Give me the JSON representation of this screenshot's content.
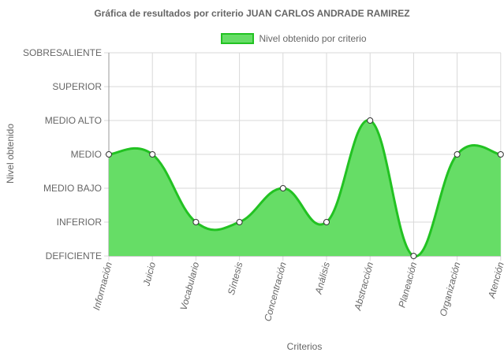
{
  "chart_data": {
    "type": "area",
    "title": "Gráfica de resultados por criterio JUAN CARLOS ANDRADE RAMIREZ",
    "xlabel": "Criterios",
    "ylabel": "Nivel obtenido",
    "legend": {
      "position": "top",
      "label": "Nivel obtenido por criterio"
    },
    "y_levels": [
      "DEFICIENTE",
      "INFERIOR",
      "MEDIO BAJO",
      "MEDIO",
      "MEDIO ALTO",
      "SUPERIOR",
      "SOBRESALIENTE"
    ],
    "ylim": [
      0,
      6
    ],
    "grid": true,
    "categories": [
      "Información",
      "Juicio",
      "Vocabulario",
      "Síntesis",
      "Concentración",
      "Análisis",
      "Abstracción",
      "Planeación",
      "Organización",
      "Atención"
    ],
    "series": [
      {
        "name": "Nivel obtenido por criterio",
        "values": [
          3,
          3,
          1,
          1,
          2,
          1,
          4,
          0,
          3,
          3
        ],
        "labels": [
          "MEDIO",
          "MEDIO",
          "INFERIOR",
          "INFERIOR",
          "MEDIO BAJO",
          "INFERIOR",
          "MEDIO ALTO",
          "DEFICIENTE",
          "MEDIO",
          "MEDIO"
        ]
      }
    ],
    "colors": {
      "fill": "#66dd66",
      "line": "#22c222",
      "grid": "#d9d9d9",
      "axis": "#999999"
    }
  }
}
